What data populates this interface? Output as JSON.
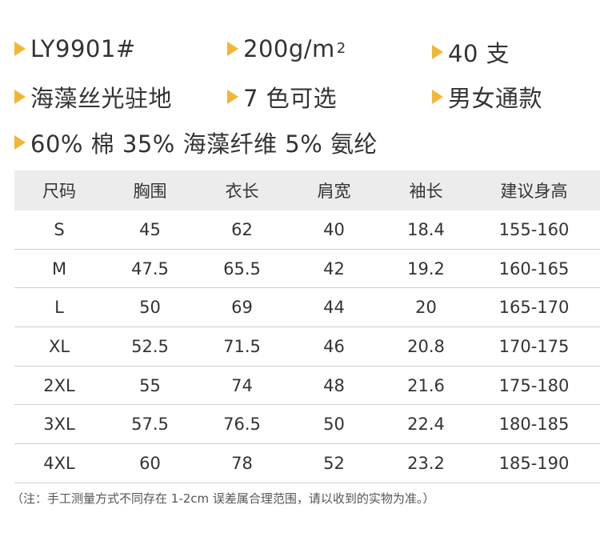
{
  "specs": {
    "model": "LY9901#",
    "weight": "200g/m",
    "weight_sup": "2",
    "count": "40 支",
    "fabric": "海藻丝光驻地",
    "colors": "7 色可选",
    "gender": "男女通款",
    "composition": "60% 棉 35% 海藻纤维 5% 氨纶"
  },
  "table": {
    "headers": [
      "尺码",
      "胸围",
      "衣长",
      "肩宽",
      "袖长",
      "建议身高"
    ],
    "rows": [
      [
        "S",
        "45",
        "62",
        "40",
        "18.4",
        "155-160"
      ],
      [
        "M",
        "47.5",
        "65.5",
        "42",
        "19.2",
        "160-165"
      ],
      [
        "L",
        "50",
        "69",
        "44",
        "20",
        "165-170"
      ],
      [
        "XL",
        "52.5",
        "71.5",
        "46",
        "20.8",
        "170-175"
      ],
      [
        "2XL",
        "55",
        "74",
        "48",
        "21.6",
        "175-180"
      ],
      [
        "3XL",
        "57.5",
        "76.5",
        "50",
        "22.4",
        "180-185"
      ],
      [
        "4XL",
        "60",
        "78",
        "52",
        "23.2",
        "185-190"
      ]
    ]
  },
  "note": "（注：手工测量方式不同存在 1-2cm 误差属合理范围，请以收到的实物为准。）",
  "colors": {
    "accent": "#f2b636",
    "header_bg": "#ececec",
    "text": "#333333"
  }
}
